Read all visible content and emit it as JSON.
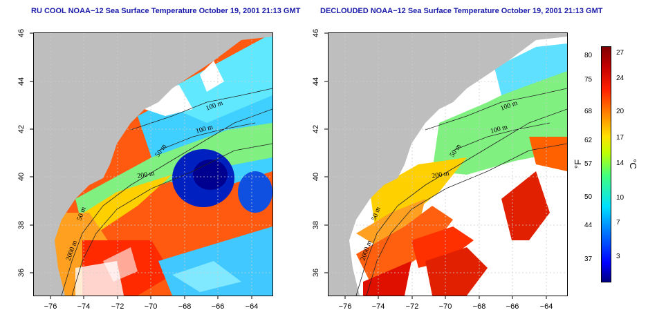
{
  "titles": {
    "left": "RU COOL NOAA−12 Sea Surface Temperature October 19, 2001 21:13 GMT",
    "right": "DECLOUDED NOAA−12 Sea Surface Temperature October 19, 2001 21:13 GMT"
  },
  "axes": {
    "lon_ticks": [
      "−76",
      "−74",
      "−72",
      "−70",
      "−68",
      "−66",
      "−64"
    ],
    "lat_ticks": [
      "46",
      "44",
      "42",
      "40",
      "38",
      "36"
    ]
  },
  "contour_labels": [
    "100 m",
    "100 m",
    "50 m",
    "200 m",
    "50 m",
    "2000 m"
  ],
  "colorbar": {
    "fahrenheit_ticks": [
      "80",
      "75",
      "68",
      "62",
      "57",
      "50",
      "44",
      "37"
    ],
    "celsius_ticks": [
      "27",
      "24",
      "20",
      "17",
      "14",
      "10",
      "7",
      "3"
    ],
    "fahrenheit_unit": "°F",
    "celsius_unit": "°C"
  },
  "colors": {
    "land": "#bebebe",
    "cloud": "#ffffff",
    "title": "#1a1aaa",
    "ramp": [
      "#000080",
      "#0000ff",
      "#0080ff",
      "#00e0ff",
      "#40ff80",
      "#c0ff00",
      "#ffe000",
      "#ff8000",
      "#ff2000",
      "#c00000",
      "#800000"
    ]
  }
}
